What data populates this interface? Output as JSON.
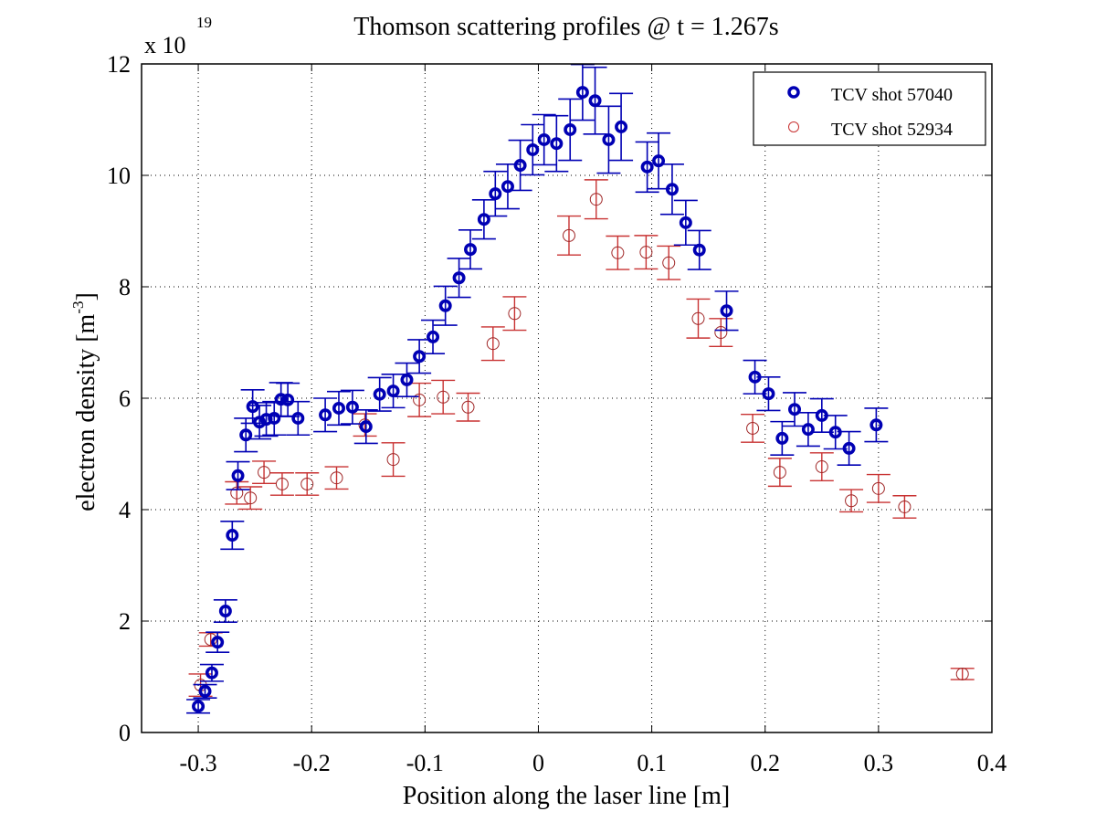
{
  "chart_data": {
    "type": "scatter",
    "title": "Thomson scattering profiles @ t = 1.267s",
    "xlabel": "Position along the laser line [m]",
    "ylabel": "electron density [m",
    "ylabel_superscript": "-3",
    "ylabel_suffix": "]",
    "y_multiplier_base": "x 10",
    "y_multiplier_exponent": "19",
    "xlim": [
      -0.35,
      0.4
    ],
    "ylim": [
      0,
      12
    ],
    "x_ticks": [
      -0.3,
      -0.2,
      -0.1,
      0,
      0.1,
      0.2,
      0.3,
      0.4
    ],
    "x_tick_labels": [
      "-0.3",
      "-0.2",
      "-0.1",
      "0",
      "0.1",
      "0.2",
      "0.3",
      "0.4"
    ],
    "y_ticks": [
      0,
      2,
      4,
      6,
      8,
      10,
      12
    ],
    "y_tick_labels": [
      "0",
      "2",
      "4",
      "6",
      "8",
      "10",
      "12"
    ],
    "grid": true,
    "legend_position": "top-right",
    "series": [
      {
        "name": "TCV shot 57040",
        "color": "#0000b4",
        "marker": "circle-bold",
        "x": [
          -0.3,
          -0.294,
          -0.288,
          -0.283,
          -0.276,
          -0.27,
          -0.265,
          -0.258,
          -0.252,
          -0.246,
          -0.24,
          -0.233,
          -0.227,
          -0.221,
          -0.212,
          -0.188,
          -0.176,
          -0.164,
          -0.152,
          -0.14,
          -0.128,
          -0.116,
          -0.105,
          -0.093,
          -0.082,
          -0.07,
          -0.06,
          -0.048,
          -0.038,
          -0.027,
          -0.016,
          -0.005,
          0.005,
          0.016,
          0.028,
          0.039,
          0.05,
          0.062,
          0.073,
          0.096,
          0.106,
          0.118,
          0.13,
          0.142,
          0.166,
          0.191,
          0.203,
          0.215,
          0.226,
          0.238,
          0.25,
          0.262,
          0.274,
          0.298
        ],
        "y": [
          0.47,
          0.74,
          1.07,
          1.62,
          2.18,
          3.54,
          4.61,
          5.34,
          5.85,
          5.57,
          5.62,
          5.64,
          5.98,
          5.97,
          5.64,
          5.7,
          5.82,
          5.84,
          5.49,
          6.07,
          6.13,
          6.33,
          6.75,
          7.1,
          7.66,
          8.16,
          8.67,
          9.21,
          9.67,
          9.8,
          10.18,
          10.46,
          10.64,
          10.57,
          10.82,
          11.49,
          11.34,
          10.64,
          10.87,
          10.15,
          10.26,
          9.75,
          9.15,
          8.66,
          7.57,
          6.38,
          6.08,
          5.28,
          5.8,
          5.44,
          5.69,
          5.39,
          5.1,
          5.52
        ],
        "err": [
          0.12,
          0.12,
          0.15,
          0.18,
          0.2,
          0.25,
          0.25,
          0.3,
          0.3,
          0.3,
          0.3,
          0.3,
          0.3,
          0.3,
          0.3,
          0.3,
          0.3,
          0.3,
          0.3,
          0.3,
          0.3,
          0.3,
          0.3,
          0.3,
          0.35,
          0.35,
          0.35,
          0.35,
          0.4,
          0.4,
          0.45,
          0.45,
          0.45,
          0.5,
          0.55,
          0.5,
          0.6,
          0.6,
          0.6,
          0.45,
          0.5,
          0.45,
          0.4,
          0.35,
          0.35,
          0.3,
          0.3,
          0.3,
          0.3,
          0.3,
          0.3,
          0.3,
          0.3,
          0.3
        ]
      },
      {
        "name": "TCV shot 52934",
        "color": "#c83232",
        "marker": "circle-thin",
        "x": [
          -0.298,
          -0.289,
          -0.266,
          -0.254,
          -0.242,
          -0.226,
          -0.204,
          -0.178,
          -0.153,
          -0.128,
          -0.105,
          -0.084,
          -0.062,
          -0.04,
          -0.021,
          0.027,
          0.051,
          0.07,
          0.095,
          0.115,
          0.141,
          0.161,
          0.189,
          0.213,
          0.25,
          0.276,
          0.3,
          0.323,
          0.374
        ],
        "y": [
          0.85,
          1.67,
          4.3,
          4.21,
          4.67,
          4.46,
          4.46,
          4.57,
          5.52,
          4.9,
          5.97,
          6.02,
          5.84,
          6.98,
          7.52,
          8.92,
          9.57,
          8.61,
          8.62,
          8.43,
          7.43,
          7.18,
          5.46,
          4.67,
          4.77,
          4.16,
          4.38,
          4.05,
          1.05
        ],
        "err": [
          0.2,
          0.12,
          0.2,
          0.2,
          0.2,
          0.2,
          0.2,
          0.2,
          0.2,
          0.3,
          0.3,
          0.3,
          0.25,
          0.3,
          0.3,
          0.35,
          0.35,
          0.3,
          0.3,
          0.3,
          0.35,
          0.25,
          0.25,
          0.25,
          0.25,
          0.2,
          0.25,
          0.2,
          0.1
        ]
      }
    ]
  }
}
